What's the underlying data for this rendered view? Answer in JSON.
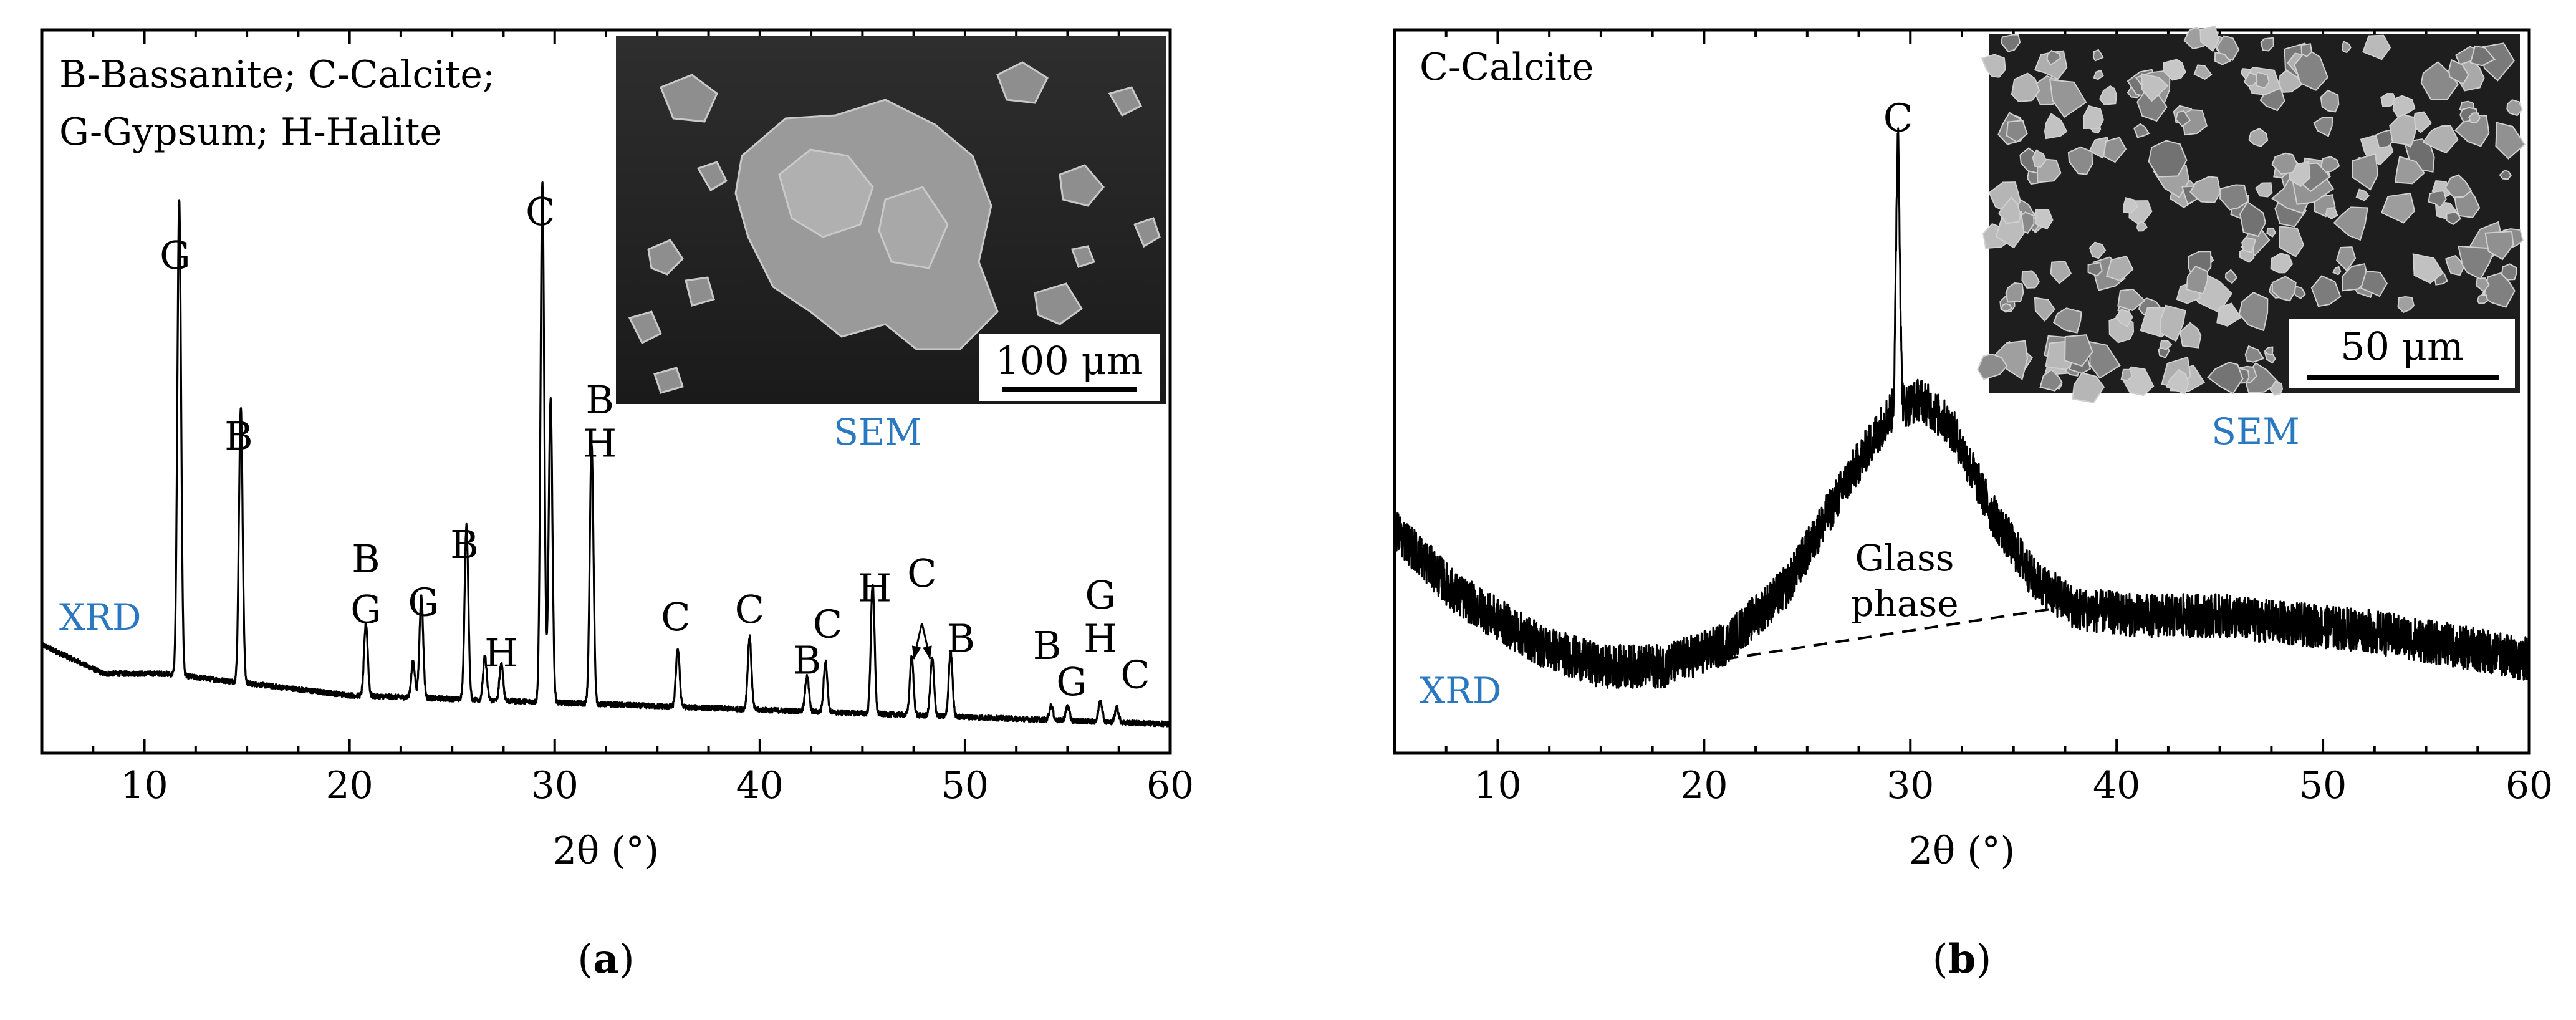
{
  "chart_data": [
    {
      "type": "line",
      "panel_label": "a",
      "xlabel": "2θ (°)",
      "ylabel": "",
      "xlim": [
        5,
        60
      ],
      "ylim": [
        0,
        100
      ],
      "x_ticks": [
        10,
        20,
        30,
        40,
        50,
        60
      ],
      "grid": false,
      "legend_text": [
        "B-Bassanite; C-Calcite;",
        "G-Gypsum; H-Halite"
      ],
      "trace_label": "XRD",
      "inset_label": "SEM",
      "scale_bar": "100 μm",
      "series": [
        {
          "name": "XRD pattern",
          "baseline": [
            [
              5,
              15
            ],
            [
              8,
              11
            ],
            [
              11,
              11
            ],
            [
              20,
              8
            ],
            [
              30,
              7
            ],
            [
              40,
              6
            ],
            [
              50,
              5
            ],
            [
              60,
              4
            ]
          ],
          "peaks": [
            {
              "x": 11.7,
              "h": 66
            },
            {
              "x": 14.7,
              "h": 38
            },
            {
              "x": 20.8,
              "h": 10
            },
            {
              "x": 23.1,
              "h": 5
            },
            {
              "x": 23.5,
              "h": 14
            },
            {
              "x": 25.7,
              "h": 24
            },
            {
              "x": 26.6,
              "h": 6
            },
            {
              "x": 27.4,
              "h": 5
            },
            {
              "x": 29.4,
              "h": 72
            },
            {
              "x": 29.8,
              "h": 42
            },
            {
              "x": 31.8,
              "h": 36
            },
            {
              "x": 36.0,
              "h": 8
            },
            {
              "x": 39.5,
              "h": 10
            },
            {
              "x": 42.3,
              "h": 5
            },
            {
              "x": 43.2,
              "h": 7
            },
            {
              "x": 45.5,
              "h": 18
            },
            {
              "x": 47.4,
              "h": 8
            },
            {
              "x": 48.4,
              "h": 8
            },
            {
              "x": 49.3,
              "h": 9
            },
            {
              "x": 54.2,
              "h": 2
            },
            {
              "x": 55.0,
              "h": 2
            },
            {
              "x": 56.6,
              "h": 3
            },
            {
              "x": 57.4,
              "h": 2
            }
          ]
        }
      ],
      "peak_labels": [
        {
          "text": "G",
          "x": 11.5,
          "y": 67
        },
        {
          "text": "B",
          "x": 14.6,
          "y": 42
        },
        {
          "text": "B",
          "x": 20.8,
          "y": 25
        },
        {
          "text": "G",
          "x": 20.8,
          "y": 18
        },
        {
          "text": "G",
          "x": 23.6,
          "y": 19
        },
        {
          "text": "B",
          "x": 25.6,
          "y": 27
        },
        {
          "text": "H",
          "x": 27.4,
          "y": 12
        },
        {
          "text": "C",
          "x": 29.3,
          "y": 73
        },
        {
          "text": "B",
          "x": 32.2,
          "y": 47
        },
        {
          "text": "H",
          "x": 32.2,
          "y": 41
        },
        {
          "text": "C",
          "x": 35.9,
          "y": 17
        },
        {
          "text": "C",
          "x": 39.5,
          "y": 18
        },
        {
          "text": "B",
          "x": 42.3,
          "y": 11
        },
        {
          "text": "C",
          "x": 43.3,
          "y": 16
        },
        {
          "text": "H",
          "x": 45.6,
          "y": 21
        },
        {
          "text": "C",
          "x": 47.9,
          "y": 23
        },
        {
          "text": "B",
          "x": 49.8,
          "y": 14
        },
        {
          "text": "B",
          "x": 54.0,
          "y": 13
        },
        {
          "text": "G",
          "x": 55.2,
          "y": 8
        },
        {
          "text": "G",
          "x": 56.6,
          "y": 20
        },
        {
          "text": "H",
          "x": 56.6,
          "y": 14
        },
        {
          "text": "C",
          "x": 58.3,
          "y": 9
        }
      ],
      "arrows": [
        {
          "from": [
            47.9,
            18
          ],
          "to": [
            47.5,
            13
          ]
        },
        {
          "from": [
            47.9,
            18
          ],
          "to": [
            48.3,
            13
          ]
        }
      ]
    },
    {
      "type": "line",
      "panel_label": "b",
      "xlabel": "2θ (°)",
      "ylabel": "",
      "xlim": [
        5,
        60
      ],
      "ylim": [
        0,
        100
      ],
      "x_ticks": [
        10,
        20,
        30,
        40,
        50,
        60
      ],
      "grid": false,
      "legend_text": [
        "C-Calcite"
      ],
      "trace_label": "XRD",
      "inset_label": "SEM",
      "scale_bar": "50 μm",
      "annotation": [
        "Glass",
        "phase"
      ],
      "series": [
        {
          "name": "XRD pattern",
          "baseline": [
            [
              5,
              31
            ],
            [
              8,
              22
            ],
            [
              12,
              15
            ],
            [
              15,
              12
            ],
            [
              18,
              12
            ],
            [
              21,
              15
            ],
            [
              24,
              23
            ],
            [
              27,
              38
            ],
            [
              29,
              47
            ],
            [
              30.5,
              49
            ],
            [
              32,
              45
            ],
            [
              34,
              33
            ],
            [
              36,
              24
            ],
            [
              38,
              20
            ],
            [
              41,
              19
            ],
            [
              45,
              19
            ],
            [
              48,
              18
            ],
            [
              52,
              17
            ],
            [
              56,
              15
            ],
            [
              60,
              13
            ]
          ],
          "noise": 3,
          "peaks": [
            {
              "x": 29.4,
              "h": 38
            }
          ]
        },
        {
          "name": "Glass phase baseline",
          "style": "dashed",
          "points": [
            [
              21,
              13
            ],
            [
              37,
              20
            ]
          ]
        }
      ],
      "peak_labels": [
        {
          "text": "C",
          "x": 29.4,
          "y": 86
        }
      ]
    }
  ]
}
